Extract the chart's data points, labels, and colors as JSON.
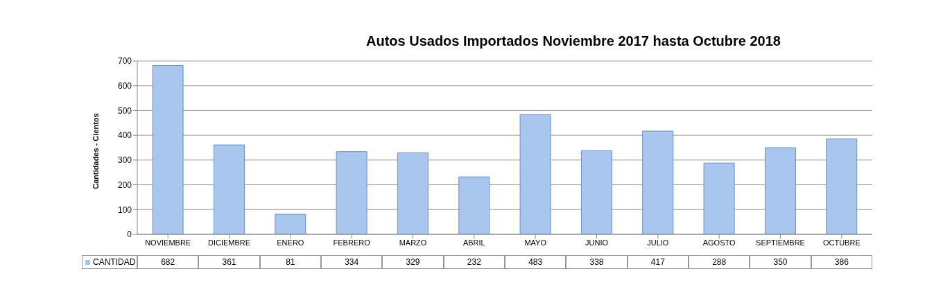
{
  "chart_data": {
    "type": "bar",
    "title": "Autos Usados Importados Noviembre 2017 hasta Octubre 2018",
    "ylabel": "Cantidades - Cientos",
    "categories": [
      "NOVIEMBRE",
      "DICIEMBRE",
      "ENERO",
      "FEBRERO",
      "MARZO",
      "ABRIL",
      "MAYO",
      "JUNIO",
      "JULIO",
      "AGOSTO",
      "SEPTIEMBRE",
      "OCTUBRE"
    ],
    "series": [
      {
        "name": "CANTIDAD",
        "color": "#a9c6ee",
        "values": [
          682,
          361,
          81,
          334,
          329,
          232,
          483,
          338,
          417,
          288,
          350,
          386
        ]
      }
    ],
    "ylim": [
      0,
      700
    ],
    "yticks": [
      0,
      100,
      200,
      300,
      400,
      500,
      600,
      700
    ],
    "grid": "y",
    "data_labels": true
  }
}
